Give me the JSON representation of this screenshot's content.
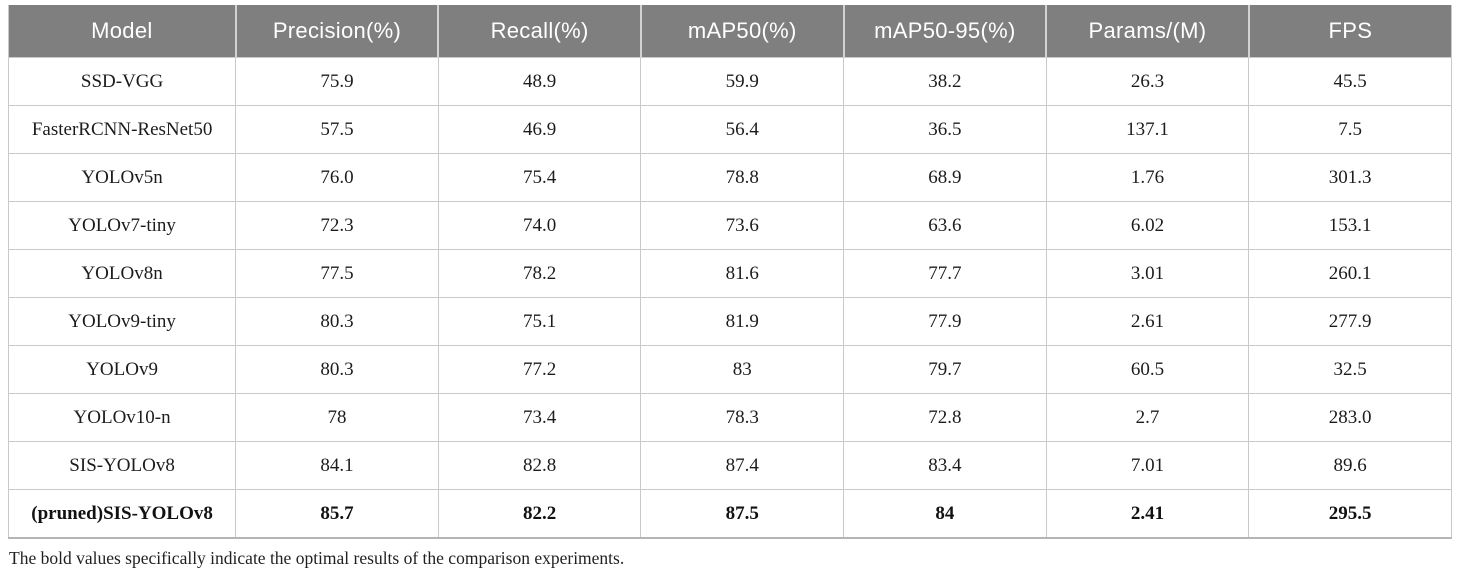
{
  "table": {
    "columns": [
      "Model",
      "Precision(%)",
      "Recall(%)",
      "mAP50(%)",
      "mAP50-95(%)",
      "Params/(M)",
      "FPS"
    ],
    "rows": [
      {
        "model": "SSD-VGG",
        "values": [
          "75.9",
          "48.9",
          "59.9",
          "38.2",
          "26.3",
          "45.5"
        ],
        "bold": false
      },
      {
        "model": "FasterRCNN-ResNet50",
        "values": [
          "57.5",
          "46.9",
          "56.4",
          "36.5",
          "137.1",
          "7.5"
        ],
        "bold": false
      },
      {
        "model": "YOLOv5n",
        "values": [
          "76.0",
          "75.4",
          "78.8",
          "68.9",
          "1.76",
          "301.3"
        ],
        "bold": false
      },
      {
        "model": "YOLOv7-tiny",
        "values": [
          "72.3",
          "74.0",
          "73.6",
          "63.6",
          "6.02",
          "153.1"
        ],
        "bold": false
      },
      {
        "model": "YOLOv8n",
        "values": [
          "77.5",
          "78.2",
          "81.6",
          "77.7",
          "3.01",
          "260.1"
        ],
        "bold": false
      },
      {
        "model": "YOLOv9-tiny",
        "values": [
          "80.3",
          "75.1",
          "81.9",
          "77.9",
          "2.61",
          "277.9"
        ],
        "bold": false
      },
      {
        "model": "YOLOv9",
        "values": [
          "80.3",
          "77.2",
          "83",
          "79.7",
          "60.5",
          "32.5"
        ],
        "bold": false
      },
      {
        "model": "YOLOv10-n",
        "values": [
          "78",
          "73.4",
          "78.3",
          "72.8",
          "2.7",
          "283.0"
        ],
        "bold": false
      },
      {
        "model": "SIS-YOLOv8",
        "values": [
          "84.1",
          "82.8",
          "87.4",
          "83.4",
          "7.01",
          "89.6"
        ],
        "bold": false
      },
      {
        "model": "(pruned)SIS-YOLOv8",
        "values": [
          "85.7",
          "82.2",
          "87.5",
          "84",
          "2.41",
          "295.5"
        ],
        "bold": true
      }
    ],
    "footnote": "The bold values specifically indicate the optimal results of the comparison experiments."
  },
  "colors": {
    "header_bg": "#7f7f7f",
    "header_text": "#ffffff",
    "cell_border": "#c9c9c9",
    "body_text": "#1c1c1c"
  }
}
